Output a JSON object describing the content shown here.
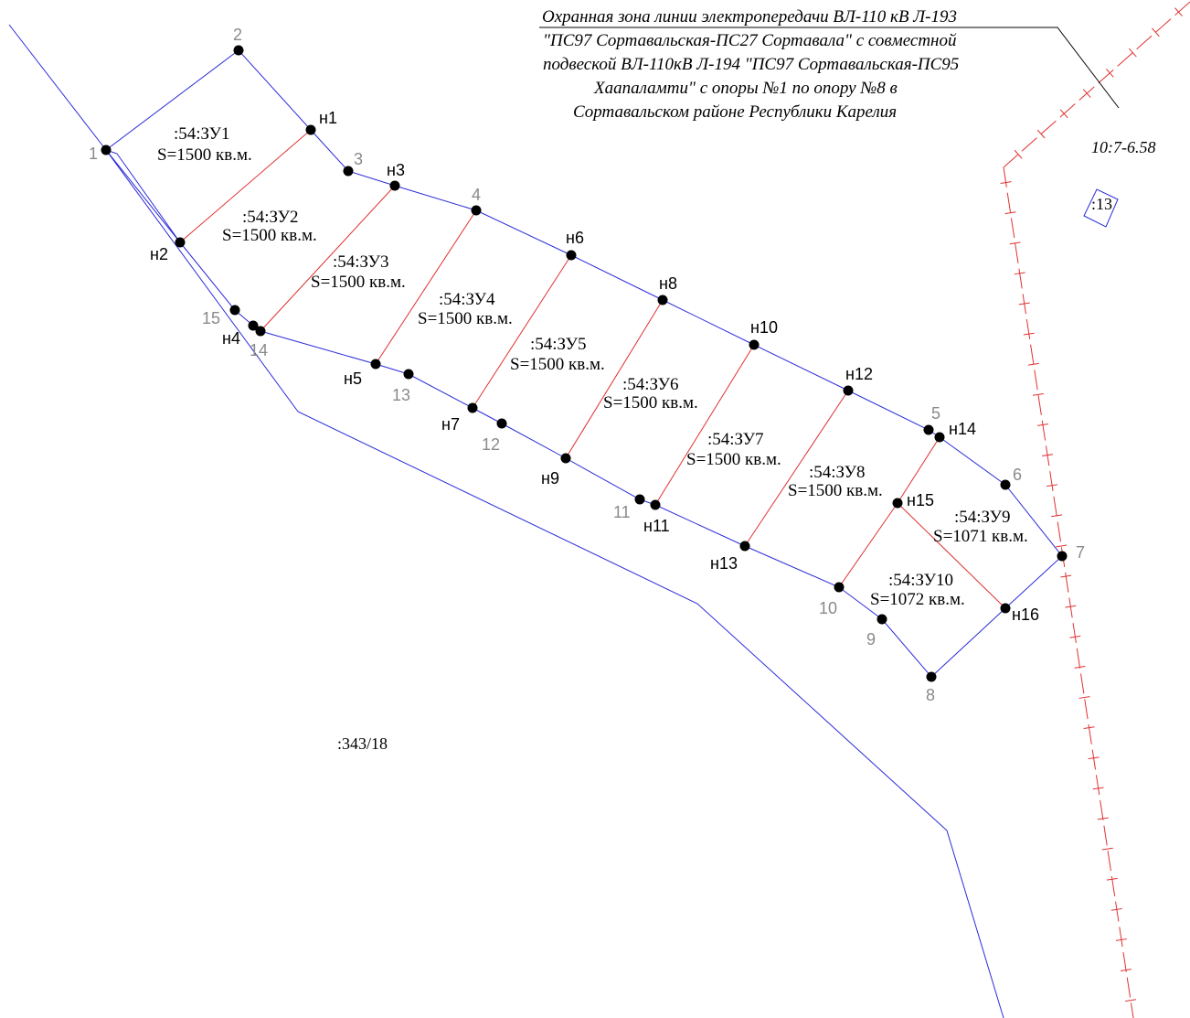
{
  "title": {
    "lines": [
      "Охранная зона линии электропередачи ВЛ-110 кВ Л-193",
      "\"ПС97 Сортавальская-ПС27 Сортавала\" с совместной",
      "подвеской ВЛ-110кВ Л-194 \"ПС97 Сортавальская-ПС95",
      "Хаапаламти\" с опоры №1 по опору №8 в",
      "Сортавальском районе Республики Карелия"
    ]
  },
  "cadastral_labels": {
    "quarter": "10:7-6.58",
    "small_parcel": ":13",
    "big_parcel": ":343/18"
  },
  "parcels": [
    {
      "id": ":54:ЗУ1",
      "area": "S=1500 кв.м."
    },
    {
      "id": ":54:ЗУ2",
      "area": "S=1500 кв.м."
    },
    {
      "id": ":54:ЗУ3",
      "area": "S=1500 кв.м."
    },
    {
      "id": ":54:ЗУ4",
      "area": "S=1500 кв.м."
    },
    {
      "id": ":54:ЗУ5",
      "area": "S=1500 кв.м."
    },
    {
      "id": ":54:ЗУ6",
      "area": "S=1500 кв.м."
    },
    {
      "id": ":54:ЗУ7",
      "area": "S=1500 кв.м."
    },
    {
      "id": ":54:ЗУ8",
      "area": "S=1500 кв.м."
    },
    {
      "id": ":54:ЗУ9",
      "area": "S=1071 кв.м."
    },
    {
      "id": ":54:ЗУ10",
      "area": "S=1072 кв.м."
    }
  ],
  "points": {
    "existing": [
      "1",
      "2",
      "3",
      "4",
      "5",
      "6",
      "7",
      "8",
      "9",
      "10",
      "11",
      "12",
      "13",
      "14",
      "15"
    ],
    "new": [
      "н1",
      "н2",
      "н3",
      "н4",
      "н5",
      "н6",
      "н7",
      "н8",
      "н9",
      "н10",
      "н11",
      "н12",
      "н13",
      "н14",
      "н15",
      "н16"
    ]
  },
  "colors": {
    "boundary": "#2b2bd9",
    "division": "#e03030",
    "guide_line": "#000000",
    "text": "#000000",
    "existing_point_label": "#8a8a8a"
  }
}
